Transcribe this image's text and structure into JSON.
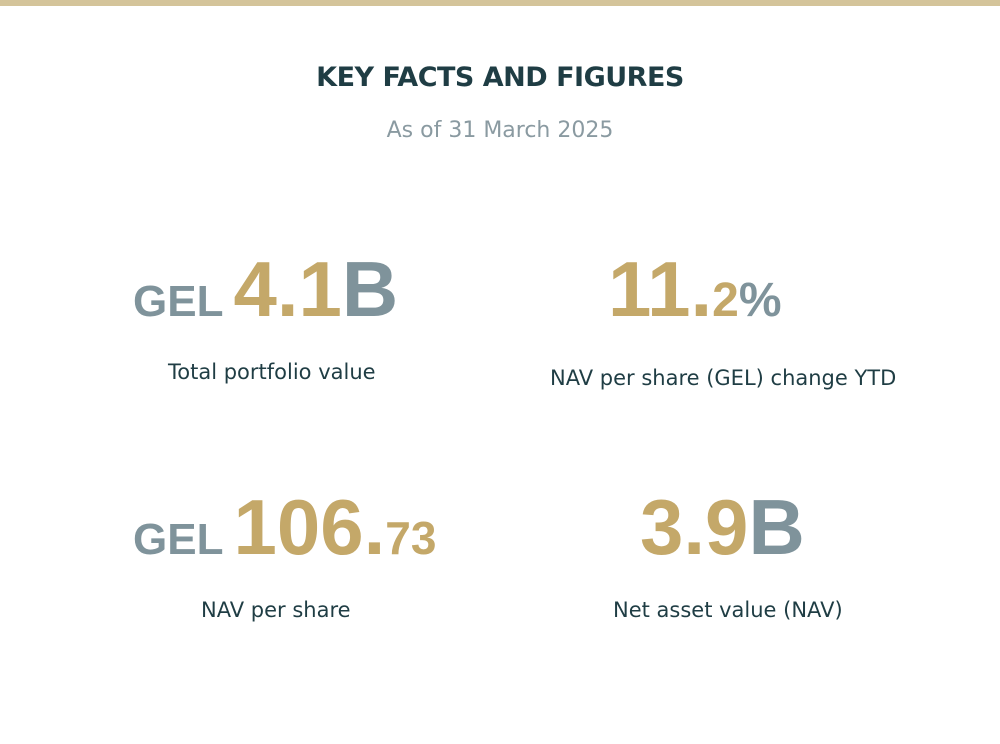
{
  "header": {
    "title": "KEY FACTS AND FIGURES",
    "subtitle": "As of 31 March 2025"
  },
  "colors": {
    "gold": "#c4a869",
    "grey": "#7f939b",
    "navy": "#1f3d44",
    "top_bar": "#d4c49a"
  },
  "stats": [
    {
      "currency": "GEL",
      "value": "4.1",
      "unit": "B",
      "label": "Total portfolio value"
    },
    {
      "value_main": "11",
      "value_dot": ".",
      "value_decimal": "2",
      "unit": "%",
      "label": "NAV per share (GEL) change YTD"
    },
    {
      "currency": "GEL",
      "value_main": "106",
      "value_dot": ".",
      "value_decimal": "73",
      "label": "NAV per share"
    },
    {
      "value": "3.9",
      "unit": "B",
      "label": "Net asset value (NAV)"
    }
  ]
}
